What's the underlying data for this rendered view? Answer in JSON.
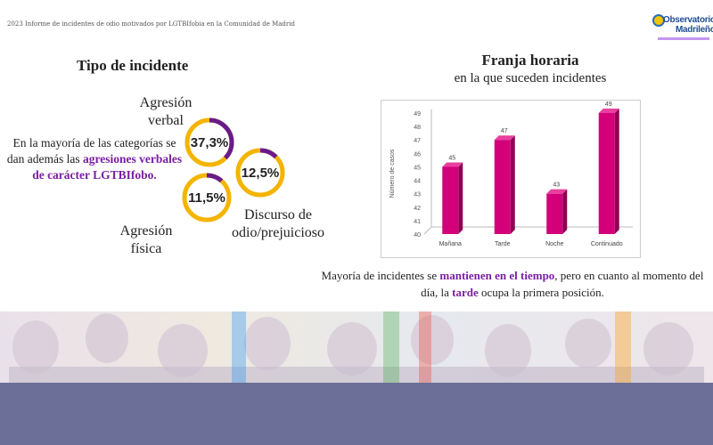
{
  "header": {
    "report_title": "2023 Informe de incidentes de odio motivados por LGTBIfobia en la Comunidad de Madrid",
    "logo_line1": "Observatorio",
    "logo_line2": "Madrileño"
  },
  "left": {
    "title": "Tipo de incidente",
    "label_verbal": "Agresión verbal",
    "label_fisica": "Agresión física",
    "label_discurso": "Discurso de odio/prejuicioso",
    "para_plain": "En la mayoría de las categorías se dan además las",
    "para_highlight": "agresiones verbales de carácter LGTBIfobo.",
    "circles": [
      {
        "name": "verbal",
        "value_text": "37,3%",
        "percent": 37.3
      },
      {
        "name": "discurso",
        "value_text": "12,5%",
        "percent": 12.5
      },
      {
        "name": "fisica",
        "value_text": "11,5%",
        "percent": 11.5
      }
    ],
    "colors": {
      "ring": "#f4b400",
      "accent": "#6a1b8a"
    }
  },
  "right": {
    "title": "Franja horaria",
    "subtitle": "en la que suceden incidentes",
    "para_part1": "Mayoría de incidentes se",
    "para_hl1": "mantienen en el tiempo",
    "para_part2": ", pero en cuanto al momento del día, la",
    "para_hl2": "tarde",
    "para_part3": "ocupa la primera posición."
  },
  "chart_data": {
    "type": "bar",
    "categories": [
      "Mañana",
      "Tarde",
      "Noche",
      "Continuado"
    ],
    "values": [
      45,
      47,
      43,
      49
    ],
    "ylabel": "Número de casos",
    "ylim": [
      40,
      49
    ],
    "yticks": [
      40,
      41,
      42,
      43,
      44,
      45,
      46,
      47,
      48,
      49
    ],
    "grid": false,
    "bar_color": "#d4007a"
  }
}
